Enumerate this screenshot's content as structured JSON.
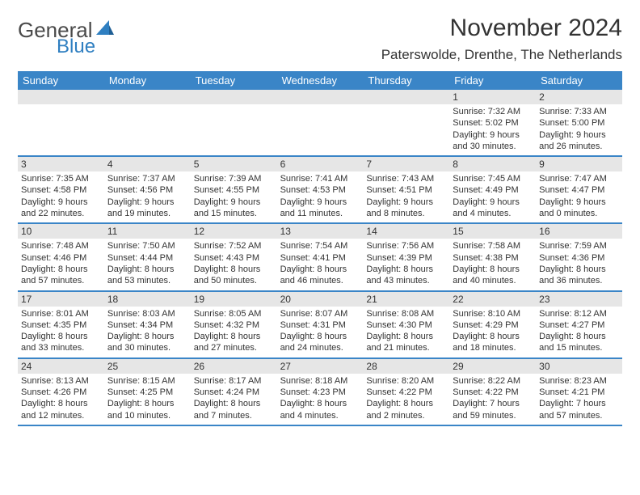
{
  "brand": {
    "part1": "General",
    "part2": "Blue"
  },
  "title": "November 2024",
  "location": "Paterswolde, Drenthe, The Netherlands",
  "colors": {
    "header_bg": "#3a85c7",
    "header_text": "#ffffff",
    "daynum_bg": "#e6e6e6",
    "border": "#3a85c7",
    "text": "#333333",
    "brand_blue": "#2f7fc1",
    "brand_gray": "#4a4a4a"
  },
  "day_names": [
    "Sunday",
    "Monday",
    "Tuesday",
    "Wednesday",
    "Thursday",
    "Friday",
    "Saturday"
  ],
  "weeks": [
    [
      {
        "n": "",
        "sr": "",
        "ss": "",
        "d1": "",
        "d2": ""
      },
      {
        "n": "",
        "sr": "",
        "ss": "",
        "d1": "",
        "d2": ""
      },
      {
        "n": "",
        "sr": "",
        "ss": "",
        "d1": "",
        "d2": ""
      },
      {
        "n": "",
        "sr": "",
        "ss": "",
        "d1": "",
        "d2": ""
      },
      {
        "n": "",
        "sr": "",
        "ss": "",
        "d1": "",
        "d2": ""
      },
      {
        "n": "1",
        "sr": "Sunrise: 7:32 AM",
        "ss": "Sunset: 5:02 PM",
        "d1": "Daylight: 9 hours",
        "d2": "and 30 minutes."
      },
      {
        "n": "2",
        "sr": "Sunrise: 7:33 AM",
        "ss": "Sunset: 5:00 PM",
        "d1": "Daylight: 9 hours",
        "d2": "and 26 minutes."
      }
    ],
    [
      {
        "n": "3",
        "sr": "Sunrise: 7:35 AM",
        "ss": "Sunset: 4:58 PM",
        "d1": "Daylight: 9 hours",
        "d2": "and 22 minutes."
      },
      {
        "n": "4",
        "sr": "Sunrise: 7:37 AM",
        "ss": "Sunset: 4:56 PM",
        "d1": "Daylight: 9 hours",
        "d2": "and 19 minutes."
      },
      {
        "n": "5",
        "sr": "Sunrise: 7:39 AM",
        "ss": "Sunset: 4:55 PM",
        "d1": "Daylight: 9 hours",
        "d2": "and 15 minutes."
      },
      {
        "n": "6",
        "sr": "Sunrise: 7:41 AM",
        "ss": "Sunset: 4:53 PM",
        "d1": "Daylight: 9 hours",
        "d2": "and 11 minutes."
      },
      {
        "n": "7",
        "sr": "Sunrise: 7:43 AM",
        "ss": "Sunset: 4:51 PM",
        "d1": "Daylight: 9 hours",
        "d2": "and 8 minutes."
      },
      {
        "n": "8",
        "sr": "Sunrise: 7:45 AM",
        "ss": "Sunset: 4:49 PM",
        "d1": "Daylight: 9 hours",
        "d2": "and 4 minutes."
      },
      {
        "n": "9",
        "sr": "Sunrise: 7:47 AM",
        "ss": "Sunset: 4:47 PM",
        "d1": "Daylight: 9 hours",
        "d2": "and 0 minutes."
      }
    ],
    [
      {
        "n": "10",
        "sr": "Sunrise: 7:48 AM",
        "ss": "Sunset: 4:46 PM",
        "d1": "Daylight: 8 hours",
        "d2": "and 57 minutes."
      },
      {
        "n": "11",
        "sr": "Sunrise: 7:50 AM",
        "ss": "Sunset: 4:44 PM",
        "d1": "Daylight: 8 hours",
        "d2": "and 53 minutes."
      },
      {
        "n": "12",
        "sr": "Sunrise: 7:52 AM",
        "ss": "Sunset: 4:43 PM",
        "d1": "Daylight: 8 hours",
        "d2": "and 50 minutes."
      },
      {
        "n": "13",
        "sr": "Sunrise: 7:54 AM",
        "ss": "Sunset: 4:41 PM",
        "d1": "Daylight: 8 hours",
        "d2": "and 46 minutes."
      },
      {
        "n": "14",
        "sr": "Sunrise: 7:56 AM",
        "ss": "Sunset: 4:39 PM",
        "d1": "Daylight: 8 hours",
        "d2": "and 43 minutes."
      },
      {
        "n": "15",
        "sr": "Sunrise: 7:58 AM",
        "ss": "Sunset: 4:38 PM",
        "d1": "Daylight: 8 hours",
        "d2": "and 40 minutes."
      },
      {
        "n": "16",
        "sr": "Sunrise: 7:59 AM",
        "ss": "Sunset: 4:36 PM",
        "d1": "Daylight: 8 hours",
        "d2": "and 36 minutes."
      }
    ],
    [
      {
        "n": "17",
        "sr": "Sunrise: 8:01 AM",
        "ss": "Sunset: 4:35 PM",
        "d1": "Daylight: 8 hours",
        "d2": "and 33 minutes."
      },
      {
        "n": "18",
        "sr": "Sunrise: 8:03 AM",
        "ss": "Sunset: 4:34 PM",
        "d1": "Daylight: 8 hours",
        "d2": "and 30 minutes."
      },
      {
        "n": "19",
        "sr": "Sunrise: 8:05 AM",
        "ss": "Sunset: 4:32 PM",
        "d1": "Daylight: 8 hours",
        "d2": "and 27 minutes."
      },
      {
        "n": "20",
        "sr": "Sunrise: 8:07 AM",
        "ss": "Sunset: 4:31 PM",
        "d1": "Daylight: 8 hours",
        "d2": "and 24 minutes."
      },
      {
        "n": "21",
        "sr": "Sunrise: 8:08 AM",
        "ss": "Sunset: 4:30 PM",
        "d1": "Daylight: 8 hours",
        "d2": "and 21 minutes."
      },
      {
        "n": "22",
        "sr": "Sunrise: 8:10 AM",
        "ss": "Sunset: 4:29 PM",
        "d1": "Daylight: 8 hours",
        "d2": "and 18 minutes."
      },
      {
        "n": "23",
        "sr": "Sunrise: 8:12 AM",
        "ss": "Sunset: 4:27 PM",
        "d1": "Daylight: 8 hours",
        "d2": "and 15 minutes."
      }
    ],
    [
      {
        "n": "24",
        "sr": "Sunrise: 8:13 AM",
        "ss": "Sunset: 4:26 PM",
        "d1": "Daylight: 8 hours",
        "d2": "and 12 minutes."
      },
      {
        "n": "25",
        "sr": "Sunrise: 8:15 AM",
        "ss": "Sunset: 4:25 PM",
        "d1": "Daylight: 8 hours",
        "d2": "and 10 minutes."
      },
      {
        "n": "26",
        "sr": "Sunrise: 8:17 AM",
        "ss": "Sunset: 4:24 PM",
        "d1": "Daylight: 8 hours",
        "d2": "and 7 minutes."
      },
      {
        "n": "27",
        "sr": "Sunrise: 8:18 AM",
        "ss": "Sunset: 4:23 PM",
        "d1": "Daylight: 8 hours",
        "d2": "and 4 minutes."
      },
      {
        "n": "28",
        "sr": "Sunrise: 8:20 AM",
        "ss": "Sunset: 4:22 PM",
        "d1": "Daylight: 8 hours",
        "d2": "and 2 minutes."
      },
      {
        "n": "29",
        "sr": "Sunrise: 8:22 AM",
        "ss": "Sunset: 4:22 PM",
        "d1": "Daylight: 7 hours",
        "d2": "and 59 minutes."
      },
      {
        "n": "30",
        "sr": "Sunrise: 8:23 AM",
        "ss": "Sunset: 4:21 PM",
        "d1": "Daylight: 7 hours",
        "d2": "and 57 minutes."
      }
    ]
  ]
}
